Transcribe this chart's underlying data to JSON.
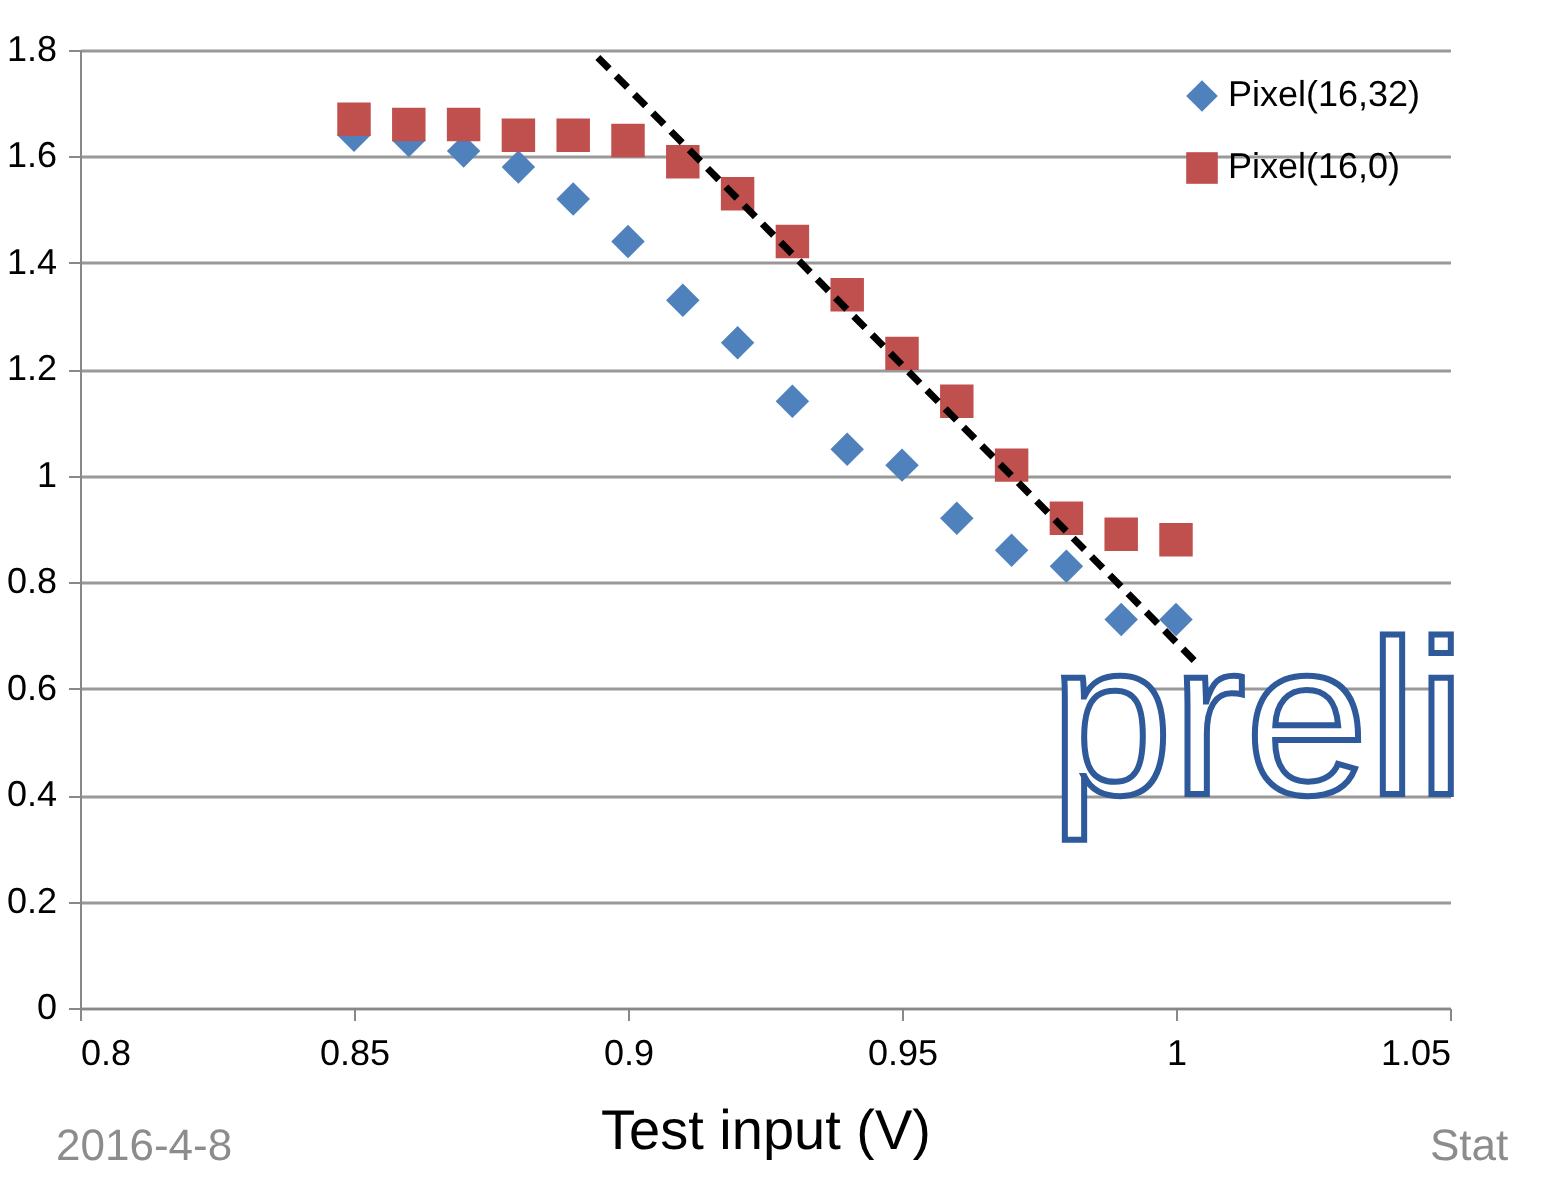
{
  "chart_data": {
    "type": "scatter",
    "xlabel": "Test input (V)",
    "x": [
      0.85,
      0.86,
      0.87,
      0.88,
      0.89,
      0.9,
      0.91,
      0.92,
      0.93,
      0.94,
      0.95,
      0.96,
      0.97,
      0.98,
      0.99,
      1.0
    ],
    "series": [
      {
        "name": "Pixel(16,32)",
        "color": "#4f81bd",
        "marker": "diamond",
        "values": [
          1.64,
          1.63,
          1.61,
          1.58,
          1.52,
          1.44,
          1.33,
          1.25,
          1.14,
          1.05,
          1.02,
          0.92,
          0.86,
          0.83,
          0.73,
          0.73
        ]
      },
      {
        "name": "Pixel(16,0)",
        "color": "#c0504d",
        "marker": "square",
        "values": [
          1.67,
          1.66,
          1.66,
          1.64,
          1.64,
          1.63,
          1.59,
          1.53,
          1.44,
          1.34,
          1.23,
          1.14,
          1.02,
          0.92,
          0.89,
          0.88
        ]
      },
      {
        "type": "line",
        "color": "#000000",
        "line_style": "dashed",
        "marker": "none",
        "x": [
          0.8945,
          1.0036
        ],
        "values": [
          1.786,
          0.65
        ]
      }
    ],
    "xlim": [
      0.8,
      1.05
    ],
    "xticks": [
      0.8,
      0.85,
      0.9,
      0.95,
      1,
      1.05
    ],
    "ylim": [
      0,
      1.8
    ],
    "yticks": [
      0,
      0.2,
      0.4,
      0.6,
      0.8,
      1,
      1.2,
      1.4,
      1.6,
      1.8
    ],
    "grid": "y",
    "legend": "top right",
    "annotations": [
      "preli",
      "2016-4-8",
      "Stat"
    ]
  }
}
